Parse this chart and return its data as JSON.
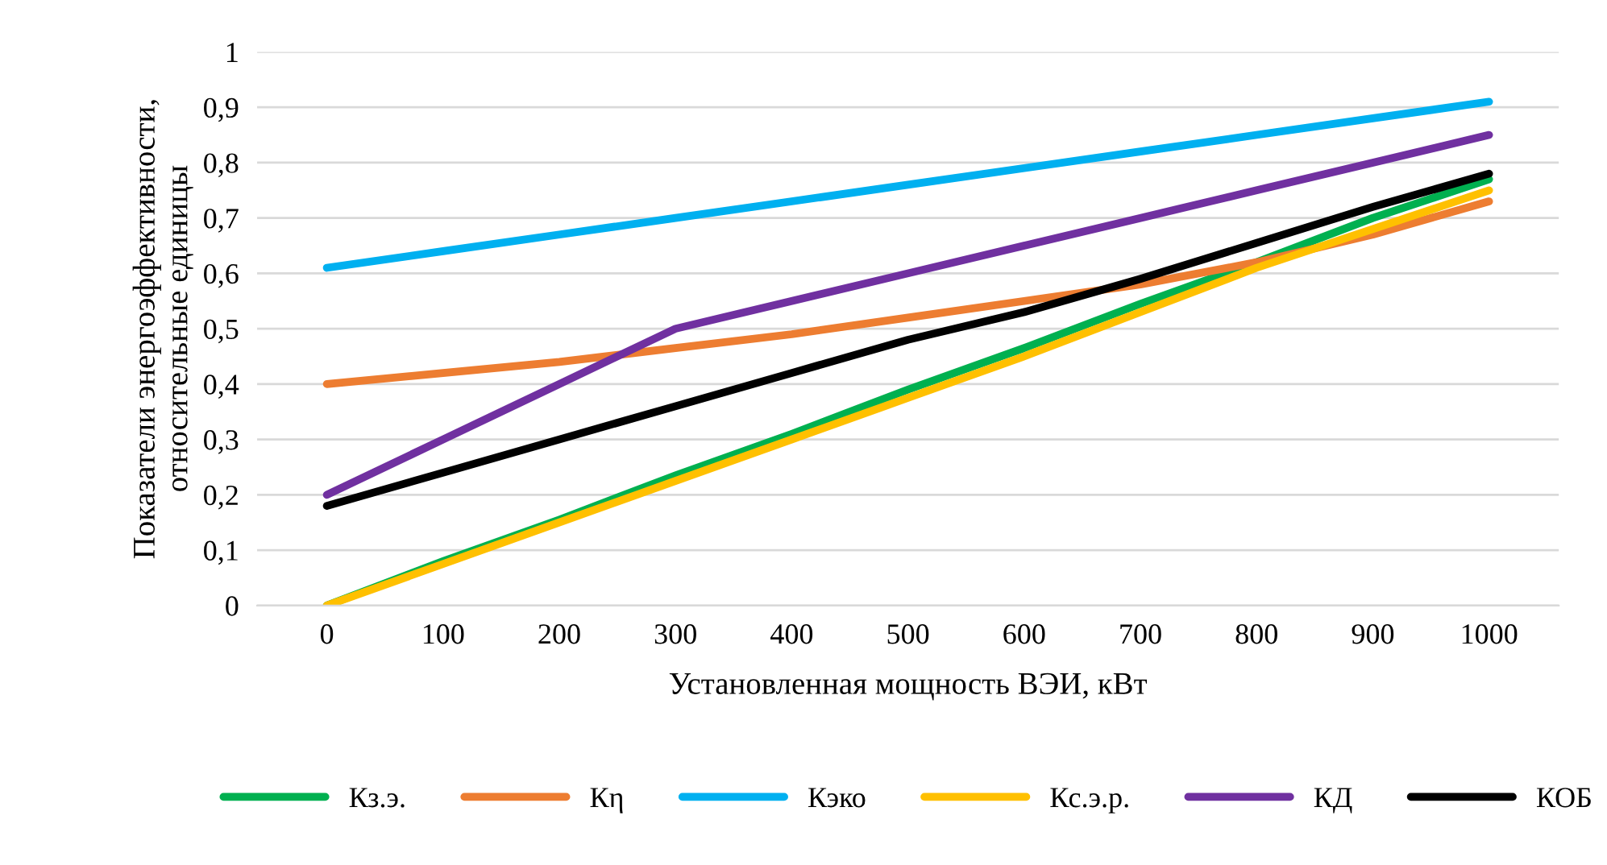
{
  "chart_data": {
    "type": "line",
    "xlabel": "Установленная мощность ВЭИ, кВт",
    "ylabel": "Показатели энергоэффективности,\nотносительные единицы",
    "categories": [
      "0",
      "100",
      "200",
      "300",
      "400",
      "500",
      "600",
      "700",
      "800",
      "900",
      "1000"
    ],
    "series": [
      {
        "name": "Кз.э.",
        "color": "#00b050",
        "values": [
          0,
          0.08,
          0.155,
          0.235,
          0.31,
          0.39,
          0.465,
          0.545,
          0.62,
          0.7,
          0.77
        ]
      },
      {
        "name": "Кη",
        "color": "#ed7d31",
        "values": [
          0.4,
          0.42,
          0.44,
          0.465,
          0.49,
          0.52,
          0.55,
          0.58,
          0.62,
          0.67,
          0.73
        ]
      },
      {
        "name": "Кэко",
        "color": "#00b0f0",
        "values": [
          0.61,
          0.64,
          0.67,
          0.7,
          0.73,
          0.76,
          0.79,
          0.82,
          0.85,
          0.88,
          0.91
        ]
      },
      {
        "name": "Кс.э.р.",
        "color": "#ffc000",
        "values": [
          0,
          0.075,
          0.15,
          0.225,
          0.3,
          0.375,
          0.45,
          0.53,
          0.61,
          0.68,
          0.75
        ]
      },
      {
        "name": "КД",
        "color": "#7030a0",
        "values": [
          0.2,
          0.3,
          0.4,
          0.5,
          0.55,
          0.6,
          0.65,
          0.7,
          0.75,
          0.8,
          0.85
        ]
      },
      {
        "name": "КОБ",
        "color": "#000000",
        "values": [
          0.18,
          0.24,
          0.3,
          0.36,
          0.42,
          0.48,
          0.53,
          0.59,
          0.655,
          0.72,
          0.78
        ]
      }
    ],
    "ylim": [
      0,
      1
    ],
    "yticks": [
      0,
      {
        "value": 0.1,
        "label": "0,1"
      },
      {
        "value": 0.2,
        "label": "0,2"
      },
      {
        "value": 0.3,
        "label": "0,3"
      },
      {
        "value": 0.4,
        "label": "0,4"
      },
      {
        "value": 0.5,
        "label": "0,5"
      },
      {
        "value": 0.6,
        "label": "0,6"
      },
      {
        "value": 0.7,
        "label": "0,7"
      },
      {
        "value": 0.8,
        "label": "0,8"
      },
      {
        "value": 0.9,
        "label": "0,9"
      },
      1
    ],
    "grid": "y",
    "legend": "bottom",
    "marker": "none",
    "line_style": "solid"
  }
}
